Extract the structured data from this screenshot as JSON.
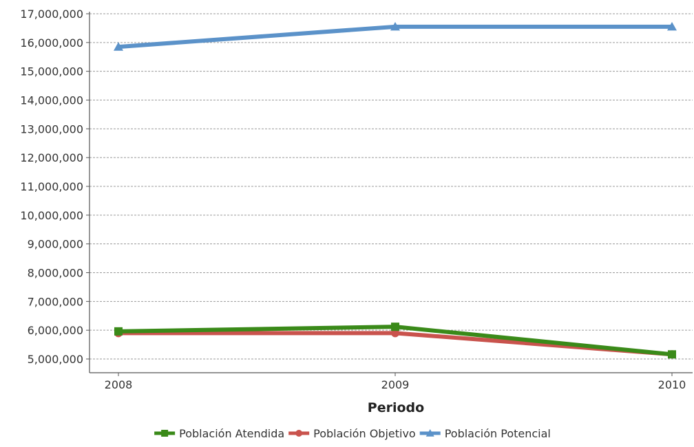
{
  "chart_data": {
    "type": "line",
    "title": "",
    "xlabel": "Periodo",
    "ylabel": "",
    "categories": [
      "2008",
      "2009",
      "2010"
    ],
    "ylim": [
      5000000,
      17000000
    ],
    "y_ticks": [
      5000000,
      6000000,
      7000000,
      8000000,
      9000000,
      10000000,
      11000000,
      12000000,
      13000000,
      14000000,
      15000000,
      16000000,
      17000000
    ],
    "y_tick_labels": [
      "5,000,000",
      "6,000,000",
      "7,000,000",
      "8,000,000",
      "9,000,000",
      "10,000,000",
      "11,000,000",
      "12,000,000",
      "13,000,000",
      "14,000,000",
      "15,000,000",
      "16,000,000",
      "17,000,000"
    ],
    "grid": true,
    "legend_position": "bottom",
    "series": [
      {
        "name": "Población Atendida",
        "color": "#3a8a19",
        "marker": "square",
        "values": [
          5960000,
          6120000,
          5160000
        ]
      },
      {
        "name": "Población Objetivo",
        "color": "#c9534d",
        "marker": "circle",
        "values": [
          5900000,
          5900000,
          5160000
        ]
      },
      {
        "name": "Población Potencial",
        "color": "#5b92c9",
        "marker": "triangle",
        "values": [
          15850000,
          16550000,
          16550000
        ]
      }
    ]
  }
}
